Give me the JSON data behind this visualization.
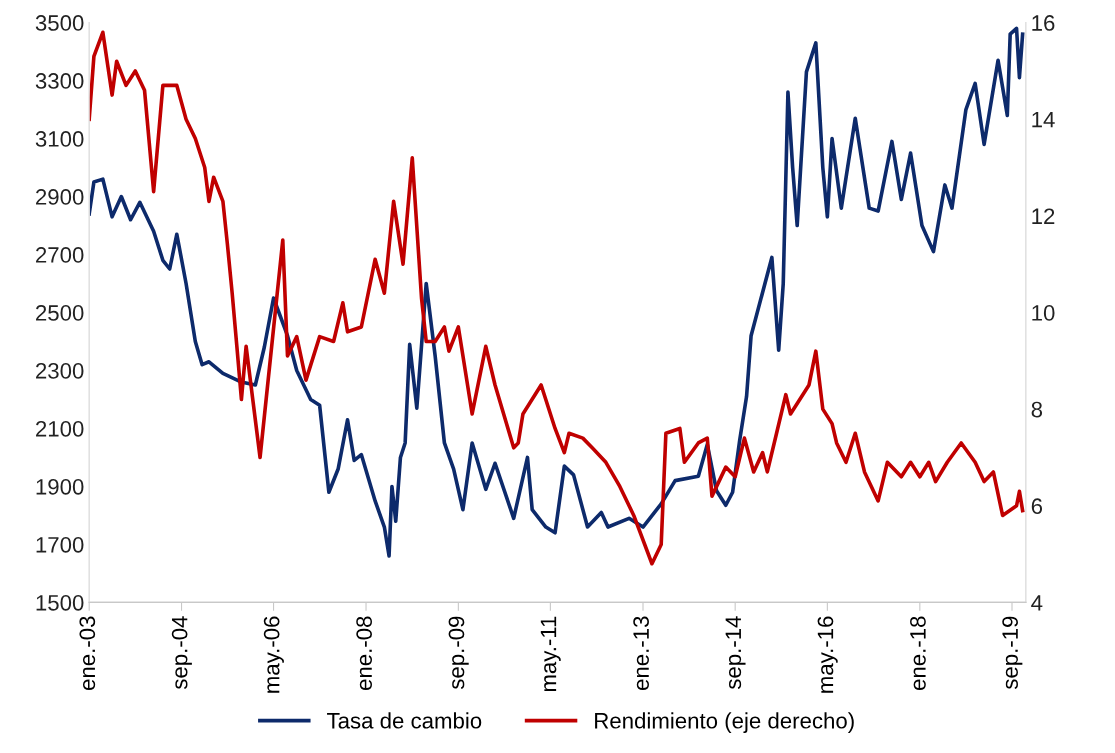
{
  "chart_data": {
    "type": "line",
    "xlim": [
      "2003-01-01",
      "2019-12-01"
    ],
    "xticks": [
      {
        "value": "2003-01-01",
        "label": "ene.-03"
      },
      {
        "value": "2004-09-01",
        "label": "sep.-04"
      },
      {
        "value": "2006-05-01",
        "label": "may.-06"
      },
      {
        "value": "2008-01-01",
        "label": "ene.-08"
      },
      {
        "value": "2009-09-01",
        "label": "sep.-09"
      },
      {
        "value": "2011-05-01",
        "label": "may.-11"
      },
      {
        "value": "2013-01-01",
        "label": "ene.-13"
      },
      {
        "value": "2014-09-01",
        "label": "sep.-14"
      },
      {
        "value": "2016-05-01",
        "label": "may.-16"
      },
      {
        "value": "2018-01-01",
        "label": "ene.-18"
      },
      {
        "value": "2019-09-01",
        "label": "sep.-19"
      }
    ],
    "ylim": [
      1500,
      3500
    ],
    "yticks": [
      1500,
      1700,
      1900,
      2100,
      2300,
      2500,
      2700,
      2900,
      3100,
      3300,
      3500
    ],
    "y2lim": [
      4,
      16
    ],
    "y2ticks": [
      4,
      6,
      8,
      10,
      12,
      14,
      16
    ],
    "legend": "bottom",
    "grid": false,
    "series": [
      {
        "name": "Tasa de cambio",
        "color": "#0d2a6b",
        "x": [
          "2003-01-01",
          "2003-02-01",
          "2003-04-01",
          "2003-06-01",
          "2003-08-01",
          "2003-10-01",
          "2003-12-01",
          "2004-03-01",
          "2004-05-01",
          "2004-06-15",
          "2004-08-01",
          "2004-10-01",
          "2004-12-01",
          "2005-01-15",
          "2005-03-01",
          "2005-06-01",
          "2005-10-01",
          "2006-01-01",
          "2006-03-01",
          "2006-05-01",
          "2006-08-01",
          "2006-10-01",
          "2007-01-01",
          "2007-03-01",
          "2007-05-01",
          "2007-07-01",
          "2007-09-01",
          "2007-10-15",
          "2007-12-01",
          "2008-03-01",
          "2008-05-01",
          "2008-06-01",
          "2008-06-20",
          "2008-07-15",
          "2008-08-15",
          "2008-09-15",
          "2008-10-15",
          "2008-12-01",
          "2009-02-01",
          "2009-04-01",
          "2009-06-01",
          "2009-08-01",
          "2009-10-01",
          "2009-12-01",
          "2010-03-01",
          "2010-05-01",
          "2010-09-01",
          "2010-12-01",
          "2011-01-01",
          "2011-04-01",
          "2011-06-01",
          "2011-08-01",
          "2011-10-01",
          "2012-01-01",
          "2012-04-01",
          "2012-05-15",
          "2012-10-01",
          "2013-01-01",
          "2013-05-01",
          "2013-08-01",
          "2014-01-01",
          "2014-03-01",
          "2014-05-01",
          "2014-07-01",
          "2014-08-15",
          "2014-10-01",
          "2014-11-15",
          "2014-12-15",
          "2015-05-01",
          "2015-06-15",
          "2015-07-15",
          "2015-08-15",
          "2015-09-15",
          "2015-10-15",
          "2015-12-15",
          "2016-02-15",
          "2016-04-01",
          "2016-05-01",
          "2016-06-01",
          "2016-08-01",
          "2016-11-01",
          "2017-02-01",
          "2017-04-01",
          "2017-07-01",
          "2017-09-01",
          "2017-11-01",
          "2018-01-15",
          "2018-04-01",
          "2018-06-15",
          "2018-08-01",
          "2018-11-01",
          "2019-01-01",
          "2019-03-01",
          "2019-06-01",
          "2019-08-01",
          "2019-08-20",
          "2019-10-01",
          "2019-10-20",
          "2019-11-10"
        ],
        "values": [
          2840,
          2950,
          2960,
          2830,
          2900,
          2820,
          2880,
          2780,
          2680,
          2650,
          2770,
          2600,
          2400,
          2320,
          2330,
          2290,
          2260,
          2250,
          2380,
          2550,
          2420,
          2300,
          2200,
          2180,
          1880,
          1960,
          2130,
          1990,
          2010,
          1850,
          1760,
          1660,
          1900,
          1780,
          2000,
          2050,
          2390,
          2170,
          2600,
          2350,
          2050,
          1960,
          1820,
          2050,
          1890,
          1980,
          1790,
          2000,
          1820,
          1760,
          1740,
          1970,
          1940,
          1760,
          1810,
          1760,
          1790,
          1760,
          1840,
          1920,
          1935,
          2045,
          1885,
          1835,
          1880,
          2060,
          2210,
          2420,
          2690,
          2370,
          2600,
          3260,
          3000,
          2800,
          3330,
          3430,
          3000,
          2830,
          3100,
          2860,
          3170,
          2860,
          2850,
          3090,
          2890,
          3050,
          2800,
          2710,
          2940,
          2860,
          3200,
          3290,
          3080,
          3370,
          3180,
          3460,
          3480,
          3310,
          3460
        ]
      },
      {
        "name": "Rendimiento (eje derecho)",
        "color": "#c00000",
        "axis": "y2",
        "x": [
          "2003-01-01",
          "2003-02-01",
          "2003-04-01",
          "2003-06-01",
          "2003-07-01",
          "2003-09-01",
          "2003-11-01",
          "2004-01-01",
          "2004-03-01",
          "2004-05-01",
          "2004-08-01",
          "2004-10-01",
          "2004-12-01",
          "2005-02-01",
          "2005-03-01",
          "2005-04-01",
          "2005-06-01",
          "2005-07-01",
          "2005-08-01",
          "2005-09-01",
          "2005-10-01",
          "2005-11-01",
          "2006-02-01",
          "2006-07-01",
          "2006-08-01",
          "2006-10-01",
          "2006-12-01",
          "2007-03-01",
          "2007-06-01",
          "2007-08-01",
          "2007-09-01",
          "2007-12-01",
          "2008-03-01",
          "2008-05-01",
          "2008-07-01",
          "2008-09-01",
          "2008-11-01",
          "2009-01-01",
          "2009-02-01",
          "2009-04-01",
          "2009-06-01",
          "2009-07-01",
          "2009-09-01",
          "2009-12-01",
          "2010-03-01",
          "2010-05-01",
          "2010-09-01",
          "2010-10-01",
          "2010-11-01",
          "2011-03-01",
          "2011-06-01",
          "2011-08-01",
          "2011-09-01",
          "2011-12-01",
          "2012-02-01",
          "2012-05-01",
          "2012-08-01",
          "2012-11-01",
          "2013-03-01",
          "2013-05-01",
          "2013-06-01",
          "2013-09-01",
          "2013-10-01",
          "2014-01-01",
          "2014-03-01",
          "2014-04-01",
          "2014-07-01",
          "2014-09-01",
          "2014-11-01",
          "2015-01-01",
          "2015-03-01",
          "2015-04-01",
          "2015-06-01",
          "2015-08-01",
          "2015-09-01",
          "2016-01-01",
          "2016-02-15",
          "2016-04-01",
          "2016-06-01",
          "2016-07-01",
          "2016-09-01",
          "2016-11-01",
          "2017-01-01",
          "2017-04-01",
          "2017-06-01",
          "2017-09-01",
          "2017-11-01",
          "2018-01-01",
          "2018-03-01",
          "2018-04-15",
          "2018-07-01",
          "2018-10-01",
          "2019-01-01",
          "2019-03-01",
          "2019-05-01",
          "2019-07-01",
          "2019-10-01",
          "2019-10-20",
          "2019-11-10"
        ],
        "values": [
          14.0,
          15.3,
          15.8,
          14.5,
          15.2,
          14.7,
          15.0,
          14.6,
          12.5,
          14.7,
          14.7,
          14.0,
          13.6,
          13.0,
          12.3,
          12.8,
          12.3,
          11.4,
          10.4,
          9.3,
          8.2,
          9.3,
          7.0,
          11.5,
          9.1,
          9.5,
          8.6,
          9.5,
          9.4,
          10.2,
          9.6,
          9.7,
          11.1,
          10.4,
          12.3,
          11.0,
          13.2,
          10.3,
          9.4,
          9.4,
          9.7,
          9.2,
          9.7,
          7.9,
          9.3,
          8.5,
          7.2,
          7.3,
          7.9,
          8.5,
          7.6,
          7.1,
          7.5,
          7.4,
          7.2,
          6.9,
          6.4,
          5.8,
          4.8,
          5.2,
          7.5,
          7.6,
          6.9,
          7.3,
          7.4,
          6.2,
          6.8,
          6.6,
          7.4,
          6.7,
          7.1,
          6.7,
          7.5,
          8.3,
          7.9,
          8.5,
          9.2,
          8.0,
          7.7,
          7.3,
          6.9,
          7.5,
          6.7,
          6.1,
          6.9,
          6.6,
          6.9,
          6.6,
          6.9,
          6.5,
          6.9,
          7.3,
          6.9,
          6.5,
          6.7,
          5.8,
          6.0,
          6.3,
          5.9
        ]
      }
    ]
  }
}
